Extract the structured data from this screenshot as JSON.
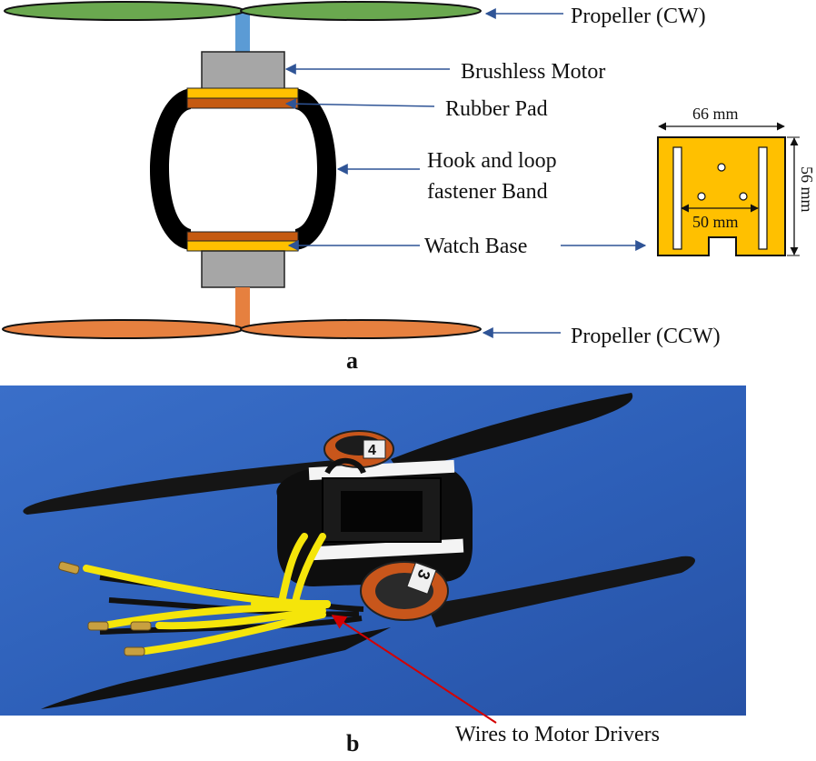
{
  "panel_a": {
    "label": "a",
    "labels": {
      "prop_cw": "Propeller (CW)",
      "motor": "Brushless Motor",
      "pad": "Rubber Pad",
      "band_line1": "Hook and loop",
      "band_line2": "fastener Band",
      "base": "Watch Base",
      "prop_ccw": "Propeller (CCW)"
    },
    "dimensions": {
      "width": "66 mm",
      "height": "56 mm",
      "hole_span": "50 mm"
    }
  },
  "panel_b": {
    "label": "b",
    "photo_labels": {
      "motor_top": "4",
      "motor_bottom": "3"
    },
    "callout": "Wires to Motor Drivers"
  },
  "colors": {
    "prop_cw": "#6aa84f",
    "prop_ccw": "#e6803f",
    "shaft_top": "#5b9bd5",
    "shaft_bottom": "#e6803f",
    "motor": "#a6a6a6",
    "pad": "#c55a11",
    "base": "#ffc000",
    "band": "#000000",
    "arrow": "#2f5496",
    "photo_bg": "#2d5fb8",
    "callout": "#d40000",
    "wire": "#f5e50a"
  }
}
